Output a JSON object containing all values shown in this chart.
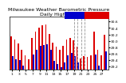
{
  "title": "Milwaukee Weather Barometric Pressure",
  "subtitle": "Daily High/Low",
  "high_color": "#dd0000",
  "low_color": "#0000cc",
  "background_color": "#ffffff",
  "ylim": [
    29.1,
    30.75
  ],
  "yticks": [
    29.2,
    29.4,
    29.6,
    29.8,
    30.0,
    30.2,
    30.4,
    30.6
  ],
  "ytick_labels": [
    "29.2",
    "29.4",
    "29.6",
    "29.8",
    "30.0",
    "30.2",
    "30.4",
    "30.6"
  ],
  "days": [
    "1",
    "5",
    "3",
    "7",
    "7",
    "9",
    "11",
    "13",
    "15",
    "17",
    "17",
    "19",
    "21",
    "23",
    "25",
    "27",
    "27"
  ],
  "highs": [
    30.15,
    29.55,
    29.92,
    30.1,
    30.42,
    30.5,
    29.95,
    29.72,
    30.05,
    30.1,
    29.82,
    29.45,
    29.52,
    30.28,
    29.72,
    29.55,
    30.18
  ],
  "lows": [
    29.52,
    29.1,
    29.4,
    29.58,
    29.85,
    29.9,
    29.38,
    29.18,
    29.55,
    29.62,
    29.32,
    28.92,
    29.05,
    29.58,
    29.22,
    29.02,
    29.68
  ],
  "n_days": 28,
  "highs_all": [
    30.15,
    30.05,
    29.92,
    29.72,
    29.55,
    29.42,
    30.1,
    30.28,
    30.42,
    30.48,
    30.5,
    30.22,
    29.95,
    29.82,
    29.72,
    29.85,
    30.05,
    30.1,
    30.02,
    29.82,
    29.45,
    29.52,
    29.5,
    29.55,
    30.28,
    29.72,
    29.55,
    30.18
  ],
  "lows_all": [
    29.52,
    29.42,
    29.4,
    29.22,
    29.1,
    29.02,
    29.58,
    29.72,
    29.85,
    29.88,
    29.9,
    29.72,
    29.38,
    29.28,
    29.18,
    29.32,
    29.55,
    29.62,
    29.52,
    29.32,
    28.92,
    29.05,
    29.02,
    29.08,
    29.58,
    29.22,
    29.02,
    29.68
  ],
  "dashed_day_indices": [
    18,
    19,
    20,
    21
  ],
  "xtick_labels": [
    "1",
    "5",
    "3",
    "7",
    "7",
    "9",
    "11",
    "13",
    "15",
    "17",
    "17",
    "19",
    "21",
    "23",
    "25",
    "27",
    "27"
  ],
  "title_fontsize": 4.5,
  "tick_fontsize": 3.2
}
